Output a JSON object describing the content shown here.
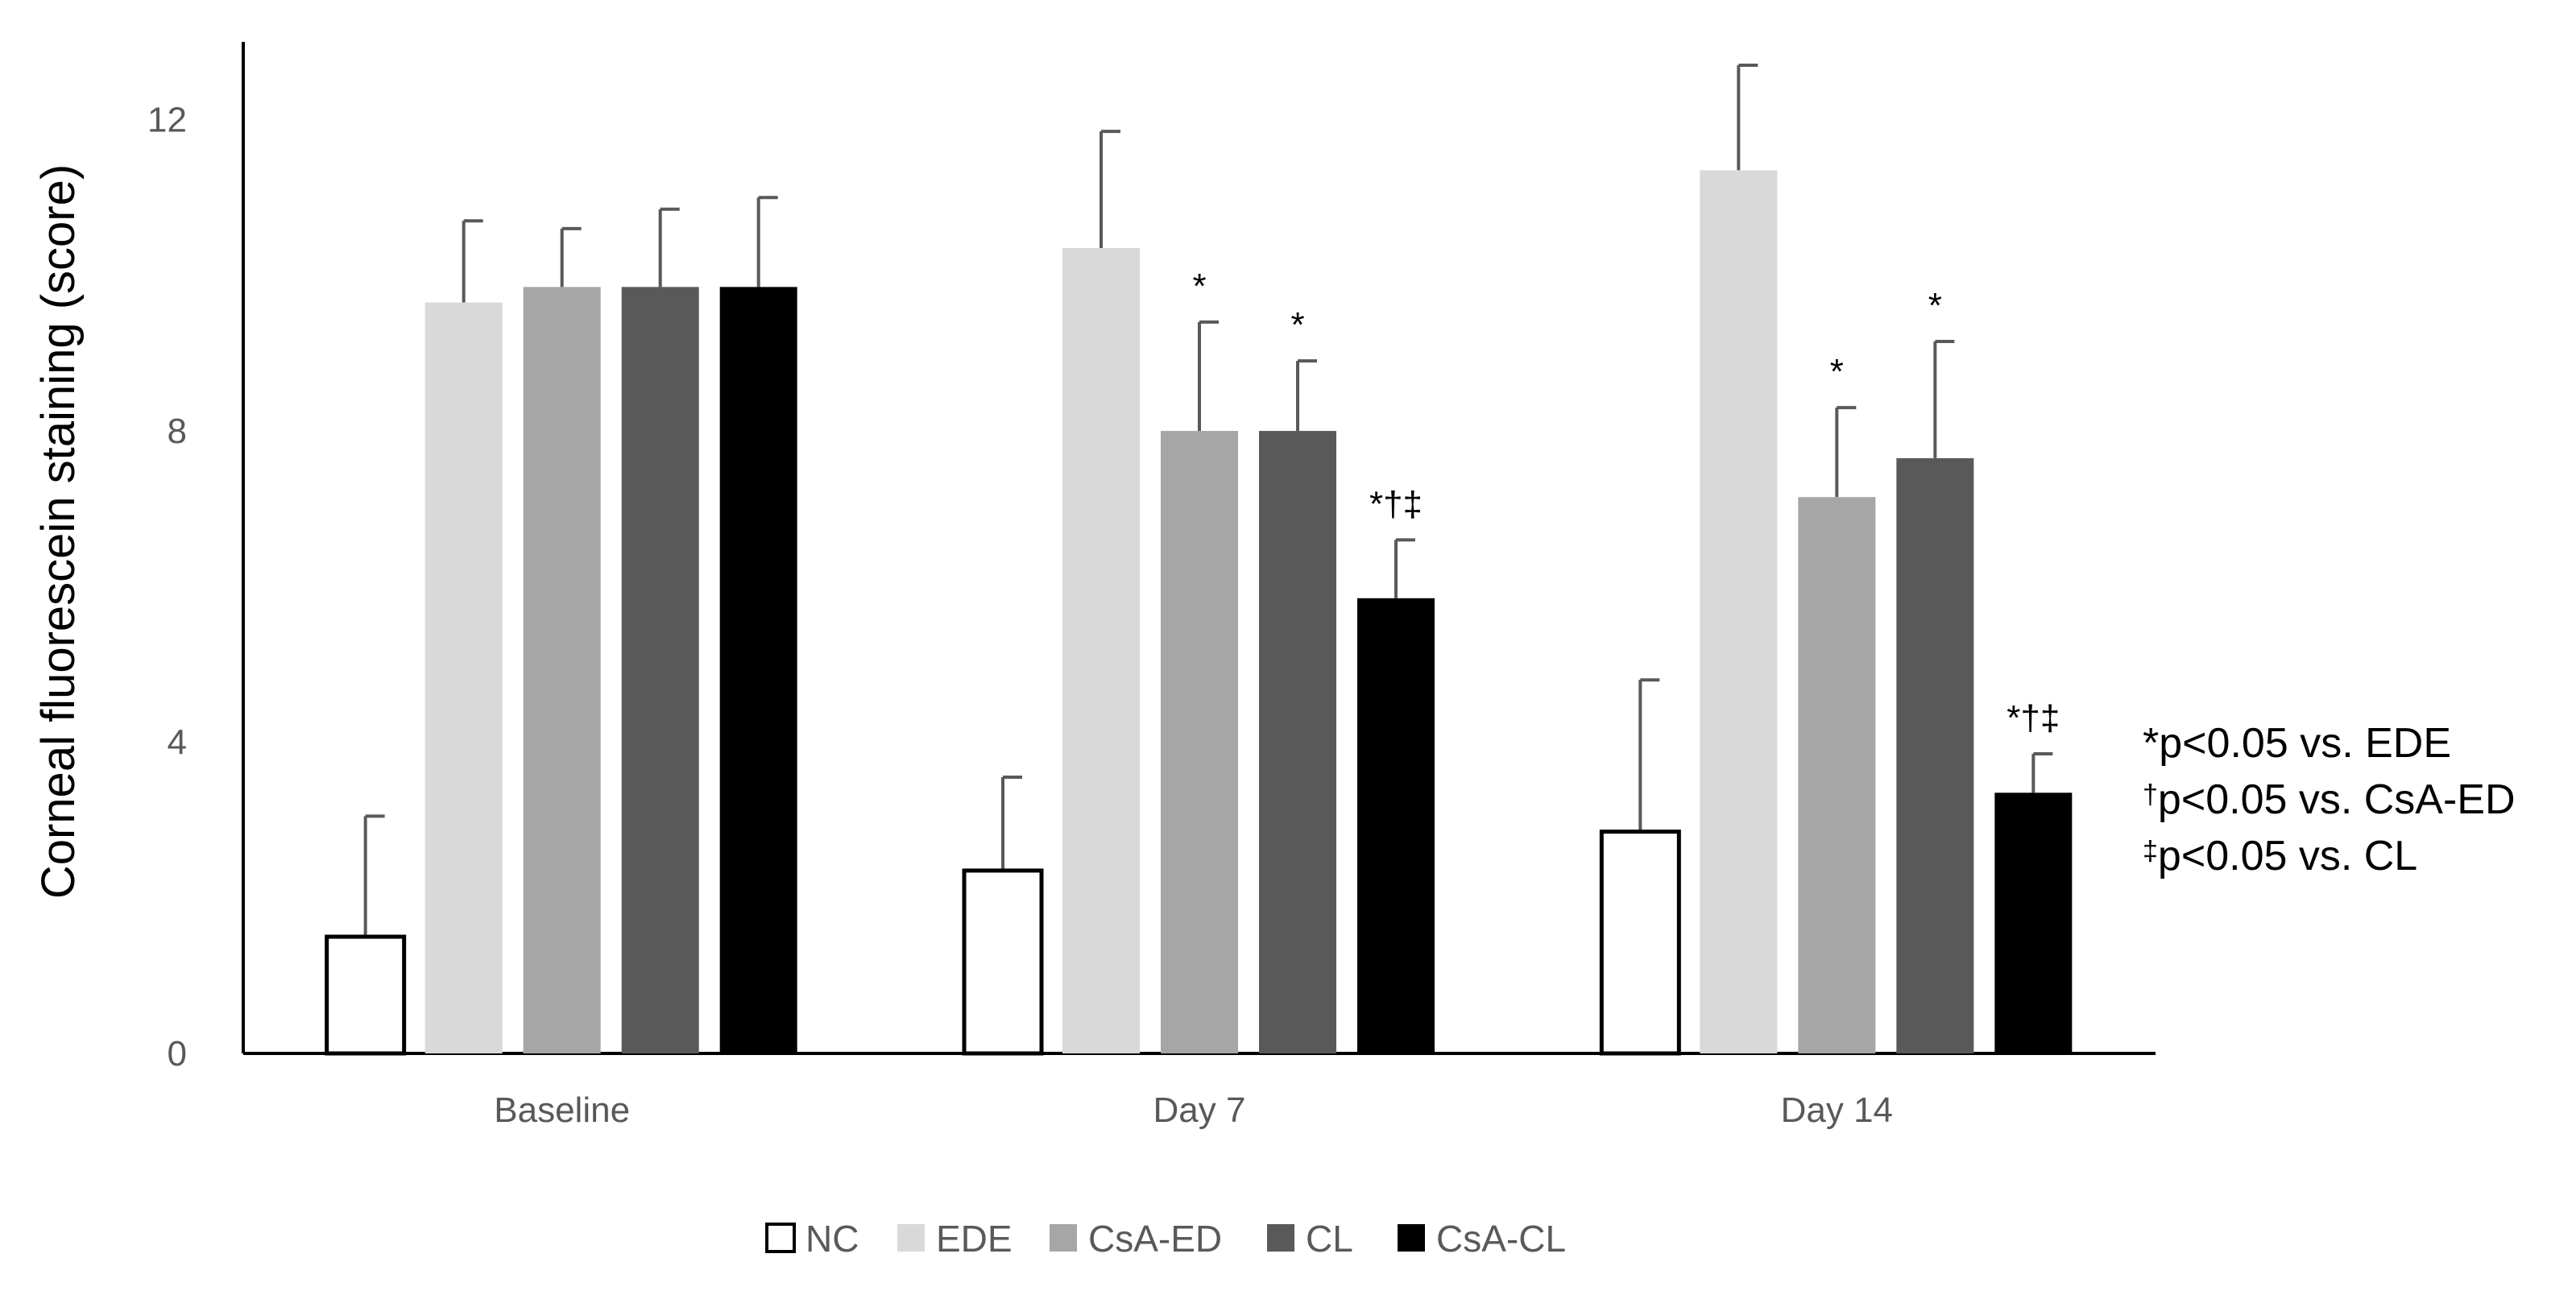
{
  "chart_data": {
    "type": "bar",
    "ylabel": "Corneal fluorescein staining (score)",
    "ylim": [
      0,
      13
    ],
    "yticks": [
      0,
      4,
      8,
      12
    ],
    "categories": [
      "Baseline",
      "Day 7",
      "Day 14"
    ],
    "series": [
      {
        "name": "NC",
        "color": "#ffffff",
        "values": [
          1.5,
          2.35,
          2.85
        ],
        "errors": [
          1.55,
          1.2,
          1.95
        ]
      },
      {
        "name": "EDE",
        "color": "#d9d9d9",
        "values": [
          9.65,
          10.35,
          11.35
        ],
        "errors": [
          1.05,
          1.5,
          1.35
        ]
      },
      {
        "name": "CsA-ED",
        "color": "#a6a6a6",
        "values": [
          9.85,
          8.0,
          7.15
        ],
        "errors": [
          0.75,
          1.4,
          1.15
        ]
      },
      {
        "name": "CL",
        "color": "#595959",
        "values": [
          9.85,
          8.0,
          7.65
        ],
        "errors": [
          1.0,
          0.9,
          1.5
        ]
      },
      {
        "name": "CsA-CL",
        "color": "#000000",
        "values": [
          9.85,
          5.85,
          3.35
        ],
        "errors": [
          1.15,
          0.75,
          0.5
        ]
      }
    ],
    "significance": [
      {
        "category": 1,
        "series": 2,
        "label": "*"
      },
      {
        "category": 1,
        "series": 3,
        "label": "*"
      },
      {
        "category": 1,
        "series": 4,
        "label": "*†‡"
      },
      {
        "category": 2,
        "series": 2,
        "label": "*"
      },
      {
        "category": 2,
        "series": 3,
        "label": "*"
      },
      {
        "category": 2,
        "series": 4,
        "label": "*†‡"
      }
    ],
    "notes": [
      {
        "mark": "*",
        "text": "p<0.05 vs. EDE"
      },
      {
        "mark": "†",
        "text": "p<0.05 vs. CsA-ED"
      },
      {
        "mark": "‡",
        "text": "p<0.05 vs. CL"
      }
    ],
    "legend": "bottom",
    "grid": false
  }
}
